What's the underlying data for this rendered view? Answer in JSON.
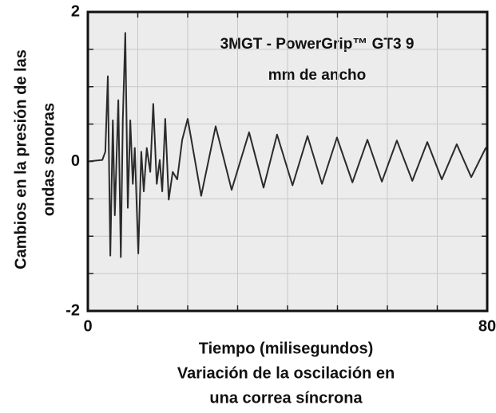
{
  "chart_data": {
    "type": "line",
    "title": [
      "Variación de la oscilación en",
      "una correa síncrona"
    ],
    "annotation": [
      "3MGT - PowerGrip™ GT3 9",
      "mm de ancho"
    ],
    "xlabel": "Tiempo (milisegundos)",
    "ylabel": [
      "Cambios en la presión de las",
      "ondas sonoras"
    ],
    "x": [
      0,
      2.9,
      3.5,
      4,
      4.5,
      5,
      5.4,
      6.1,
      6.6,
      7,
      7.5,
      8,
      8.5,
      9,
      9.4,
      10.1,
      10.7,
      11.2,
      11.8,
      12.5,
      13.1,
      13.8,
      14.4,
      14.9,
      15.5,
      16.2,
      17,
      17.9,
      18.9,
      20,
      22.7,
      25.6,
      28.8,
      32.3,
      35.2,
      37.9,
      41,
      44,
      46.9,
      49.9,
      53,
      56,
      58.9,
      61.9,
      65,
      68,
      70.9,
      73.9,
      76.8,
      79.7,
      80
    ],
    "series": [
      {
        "color": "#2b2b2b",
        "values": [
          0,
          0.02,
          0.13,
          1.14,
          -1.26,
          0.55,
          -0.72,
          0.82,
          -1.28,
          0.55,
          1.72,
          -0.62,
          0.55,
          -0.3,
          0.18,
          -1.23,
          0.13,
          -0.4,
          0.18,
          -0.14,
          0.77,
          -0.3,
          0.02,
          -0.4,
          0.57,
          -0.51,
          -0.14,
          -0.24,
          0.29,
          0.57,
          -0.46,
          0.47,
          -0.38,
          0.39,
          -0.35,
          0.36,
          -0.32,
          0.34,
          -0.3,
          0.32,
          -0.28,
          0.29,
          -0.27,
          0.28,
          -0.26,
          0.26,
          -0.24,
          0.23,
          -0.21,
          0.18,
          0.15
        ]
      }
    ],
    "xlim": [
      0,
      80
    ],
    "xticks": [
      0,
      80
    ],
    "ylim": [
      -2,
      2
    ],
    "yticks": [
      -2,
      0,
      2
    ],
    "minor_xticks": [
      10,
      20,
      30,
      40,
      50,
      60,
      70
    ],
    "minor_yticks": [
      -1.5,
      -1,
      -0.5,
      0.5,
      1,
      1.5
    ],
    "grid": true
  }
}
